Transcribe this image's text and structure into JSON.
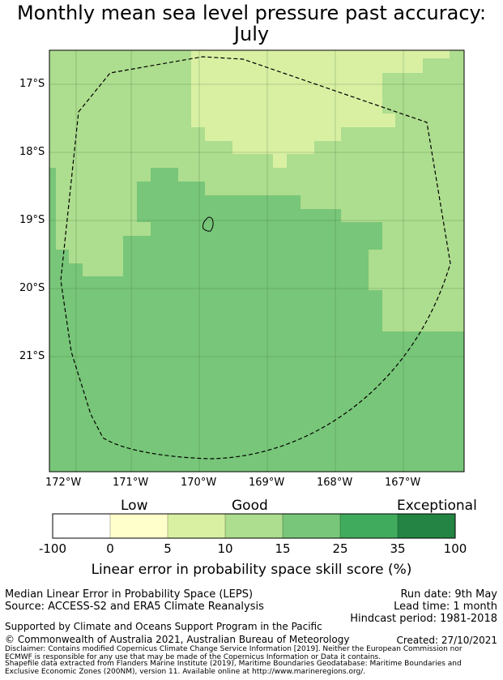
{
  "title_line1": "Monthly mean sea level pressure past accuracy:",
  "title_line2": "July",
  "map": {
    "lat_labels": [
      "17°S",
      "18°S",
      "19°S",
      "20°S",
      "21°S"
    ],
    "lon_labels": [
      "172°W",
      "171°W",
      "170°W",
      "169°W",
      "168°W",
      "167°W"
    ]
  },
  "colorbar": {
    "categories": [
      "Low",
      "Good",
      "Exceptional"
    ],
    "ticks": [
      "-100",
      "0",
      "5",
      "10",
      "15",
      "25",
      "35",
      "100"
    ],
    "colors": [
      "#ffffff",
      "#ffffcc",
      "#d9f0a3",
      "#addd8e",
      "#78c679",
      "#41ab5d",
      "#238443"
    ],
    "label": "Linear error in probability space skill score (%)"
  },
  "footer": {
    "left1": "Median Linear Error in Probability Space (LEPS)",
    "left2": "Source: ACCESS-S2 and ERA5 Climate Reanalysis",
    "right1": "Run date: 9th May",
    "right2": "Lead time: 1 month",
    "right3": "Hindcast period: 1981-2018",
    "support": "Supported by Climate and Oceans Support Program in the Pacific",
    "copyright": "© Commonwealth of Australia 2021, Australian Bureau of Meteorology",
    "created": "Created: 27/10/2021",
    "disclaimer1": "Disclaimer: Contains modified Copernicus Climate Change Service Information [2019]. Neither the European Commission nor",
    "disclaimer2": "ECMWF is responsible for any use that may be made of the Copernicus Information or Data it contains.",
    "shapefile1": "Shapefile data extracted from Flanders Marine Institute (2019), Maritime Boundaries Geodatabase: Maritime Boundaries and",
    "shapefile2": "Exclusive Economic Zones (200NM), version 11. Available online at http://www.marineregions.org/."
  }
}
